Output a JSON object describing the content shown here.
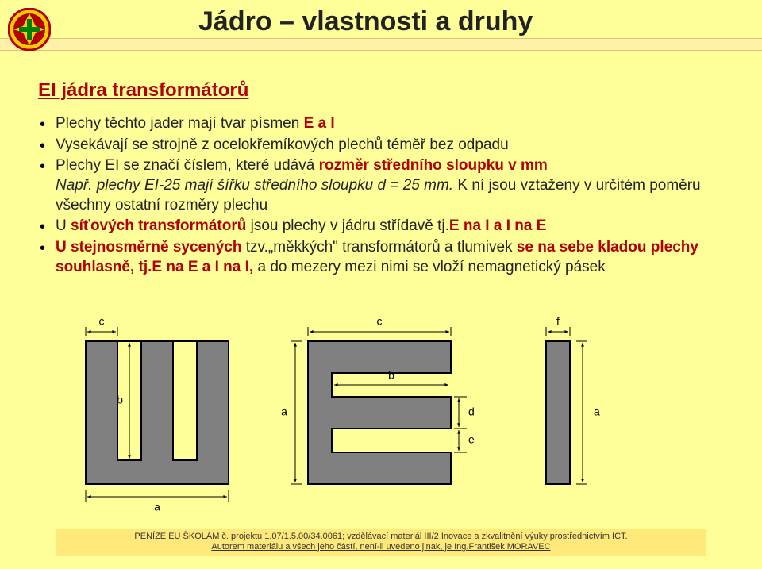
{
  "title": "Jádro – vlastnosti a druhy",
  "subheading": "EI jádra transformátorů",
  "bullets": {
    "b1a": "Plechy těchto jader mají tvar písmen ",
    "b1b": "E a I",
    "b2": "Vysekávají se strojně z ocelokřemíkových plechů téměř bez odpadu",
    "b3a": "Plechy EI se značí číslem, které udává ",
    "b3b": "rozměr středního sloupku v mm",
    "b3c": "Např. plechy EI-25 mají šířku středního sloupku d = 25 mm. ",
    "b3d": "K ní jsou vztaženy v určitém poměru všechny ostatní rozměry plechu",
    "b4a": "U ",
    "b4b": "síťových transformátorů ",
    "b4c": "jsou plechy v jádru střídavě tj.",
    "b4d": "E na I a I na E",
    "b5a": "U stejnosměrně sycených ",
    "b5b": " tzv.„měkkých\" transformátorů a tlumivek ",
    "b5c": "se na sebe kladou plechy souhlasně, tj.",
    "b5d": "E na E a I na I,",
    "b5e": "a do mezery mezi nimi se vloží nemagnetický pásek"
  },
  "diagram": {
    "fill": "#808080",
    "stroke": "#000000",
    "label_color": "#000000",
    "dim_stroke": "#000000",
    "font_size": 14,
    "e_piece": {
      "a": 180,
      "b": 40,
      "c": 40,
      "d": 40,
      "e": 30,
      "f": 30
    },
    "i_piece": {
      "a": 180,
      "f": 30
    },
    "labels": {
      "a": "a",
      "b": "b",
      "c": "c",
      "d": "d",
      "e": "e",
      "f": "f"
    }
  },
  "footer": {
    "line1": "PENÍZE EU ŠKOLÁM č. projektu 1.07/1.5.00/34.0061; vzdělávací materiál III/2 Inovace a zkvalitnění výuky prostřednictvím ICT.",
    "line2": "Autorem materiálu a všech jeho částí, není-li uvedeno jinak, je Ing.František MORAVEC"
  },
  "logo": {
    "outer": "#ffcc00",
    "ring": "#b00000",
    "symbol": "#008000"
  }
}
